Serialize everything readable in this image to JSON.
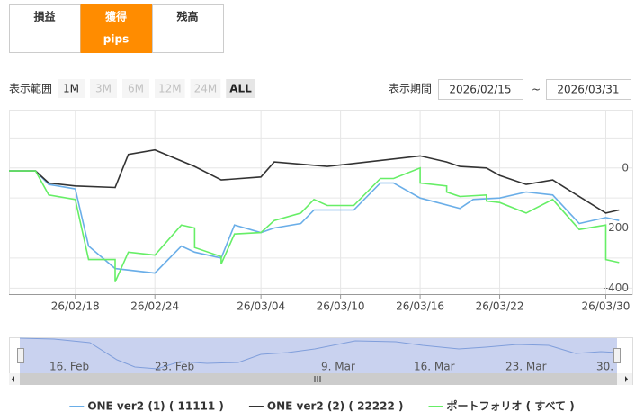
{
  "tabs": [
    {
      "lines": [
        "損益"
      ],
      "active": false
    },
    {
      "lines": [
        "獲得",
        "pips"
      ],
      "active": true
    },
    {
      "lines": [
        "残高"
      ],
      "active": false
    }
  ],
  "range": {
    "label": "表示範囲",
    "buttons": [
      {
        "text": "1M",
        "state": "enabled"
      },
      {
        "text": "3M",
        "state": "disabled"
      },
      {
        "text": "6M",
        "state": "disabled"
      },
      {
        "text": "12M",
        "state": "disabled"
      },
      {
        "text": "24M",
        "state": "disabled"
      },
      {
        "text": "ALL",
        "state": "selected"
      }
    ]
  },
  "period": {
    "label": "表示期間",
    "from": "2026/02/15",
    "separator": "~",
    "to": "2026/03/31"
  },
  "navigator": {
    "labels": [
      "16. Feb",
      "23. Feb",
      "9. Mar",
      "16. Mar",
      "23. Mar",
      "30."
    ]
  },
  "chart_data": {
    "type": "line",
    "xlim": [
      "26/02/13",
      "26/04/01"
    ],
    "xticks": [
      "26/02/18",
      "26/02/24",
      "26/03/04",
      "26/03/10",
      "26/03/16",
      "26/03/22",
      "26/03/30"
    ],
    "ylim": [
      -420,
      185
    ],
    "yticks": [
      0,
      -200,
      -400
    ],
    "minor_yticks": [
      100,
      -100,
      -300
    ],
    "grid": true,
    "series": [
      {
        "name": "ONE ver2 (1) ( 11111 )",
        "color": "#6aaee8",
        "x": [
          "26/02/13",
          "26/02/15",
          "26/02/16",
          "26/02/18",
          "26/02/19",
          "26/02/21",
          "26/02/24",
          "26/02/26",
          "26/02/27",
          "26/03/01",
          "26/03/02",
          "26/03/04",
          "26/03/05",
          "26/03/07",
          "26/03/08",
          "26/03/11",
          "26/03/13",
          "26/03/14",
          "26/03/16",
          "26/03/19",
          "26/03/20",
          "26/03/22",
          "26/03/24",
          "26/03/26",
          "26/03/28",
          "26/03/30",
          "26/03/31"
        ],
        "values": [
          -10,
          -10,
          -55,
          -70,
          -260,
          -335,
          -350,
          -260,
          -280,
          -300,
          -190,
          -215,
          -200,
          -185,
          -140,
          -140,
          -50,
          -50,
          -100,
          -135,
          -105,
          -100,
          -80,
          -90,
          -185,
          -165,
          -175
        ]
      },
      {
        "name": "ONE ver2 (2) ( 22222 )",
        "color": "#333333",
        "x": [
          "26/02/13",
          "26/02/15",
          "26/02/16",
          "26/02/18",
          "26/02/21",
          "26/02/22",
          "26/02/24",
          "26/02/27",
          "26/03/01",
          "26/03/04",
          "26/03/05",
          "26/03/09",
          "26/03/16",
          "26/03/18",
          "26/03/19",
          "26/03/21",
          "26/03/22",
          "26/03/24",
          "26/03/26",
          "26/03/30",
          "26/03/31"
        ],
        "values": [
          -10,
          -10,
          -50,
          -60,
          -65,
          45,
          60,
          5,
          -40,
          -30,
          20,
          5,
          40,
          20,
          5,
          0,
          -25,
          -55,
          -40,
          -150,
          -140
        ]
      },
      {
        "name": "ポートフォリオ ( すべて )",
        "color": "#66ee66",
        "x": [
          "26/02/13",
          "26/02/15",
          "26/02/16",
          "26/02/18",
          "26/02/19",
          "26/02/21",
          "26/02/21",
          "26/02/22",
          "26/02/24",
          "26/02/26",
          "26/02/27",
          "26/02/27",
          "26/03/01",
          "26/03/01",
          "26/03/02",
          "26/03/04",
          "26/03/05",
          "26/03/07",
          "26/03/08",
          "26/03/09",
          "26/03/11",
          "26/03/13",
          "26/03/14",
          "26/03/16",
          "26/03/16",
          "26/03/18",
          "26/03/18",
          "26/03/19",
          "26/03/21",
          "26/03/21",
          "26/03/22",
          "26/03/24",
          "26/03/26",
          "26/03/28",
          "26/03/30",
          "26/03/30",
          "26/03/31"
        ],
        "values": [
          -10,
          -10,
          -90,
          -105,
          -305,
          -305,
          -380,
          -280,
          -290,
          -190,
          -200,
          -265,
          -295,
          -320,
          -220,
          -215,
          -175,
          -150,
          -105,
          -125,
          -125,
          -35,
          -35,
          0,
          -50,
          -60,
          -80,
          -95,
          -90,
          -110,
          -115,
          -150,
          -105,
          -205,
          -190,
          -305,
          -315
        ]
      }
    ]
  }
}
